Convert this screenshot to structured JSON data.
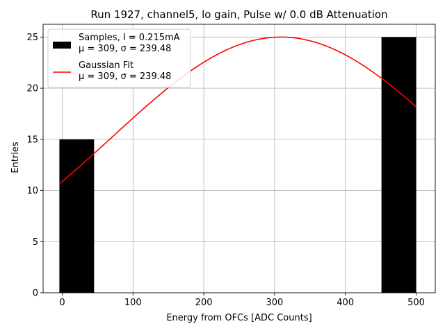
{
  "chart_data": {
    "type": "bar",
    "title": "Run 1927, channel5, lo gain, Pulse w/ 0.0 dB Attenuation",
    "xlabel": "Energy from OFCs [ADC Counts]",
    "ylabel": "Entries",
    "xlim": [
      -27,
      527
    ],
    "ylim": [
      0,
      26.25
    ],
    "grid": true,
    "legend_position": "top-left",
    "x_ticks": [
      0,
      100,
      200,
      300,
      400,
      500
    ],
    "y_ticks": [
      0,
      5,
      10,
      15,
      20,
      25
    ],
    "histogram": {
      "name_lines": [
        "Samples, I = 0.215mA",
        "μ = 309, σ = 239.48"
      ],
      "color": "#000000",
      "bins": [
        {
          "x0": -4,
          "x1": 45,
          "count": 15
        },
        {
          "x0": 45,
          "x1": 94,
          "count": 0
        },
        {
          "x0": 94,
          "x1": 143,
          "count": 0
        },
        {
          "x0": 143,
          "x1": 192,
          "count": 0
        },
        {
          "x0": 192,
          "x1": 241,
          "count": 0
        },
        {
          "x0": 241,
          "x1": 290,
          "count": 0
        },
        {
          "x0": 290,
          "x1": 339,
          "count": 0
        },
        {
          "x0": 339,
          "x1": 388,
          "count": 0
        },
        {
          "x0": 388,
          "x1": 451,
          "count": 0
        },
        {
          "x0": 451,
          "x1": 500,
          "count": 25
        }
      ]
    },
    "fit": {
      "name_lines": [
        "Gaussian Fit",
        "μ = 309, σ = 239.48"
      ],
      "color": "#ff0000",
      "mu": 309,
      "sigma": 239.48,
      "amplitude": 25,
      "x_range": [
        -4,
        500
      ]
    }
  }
}
